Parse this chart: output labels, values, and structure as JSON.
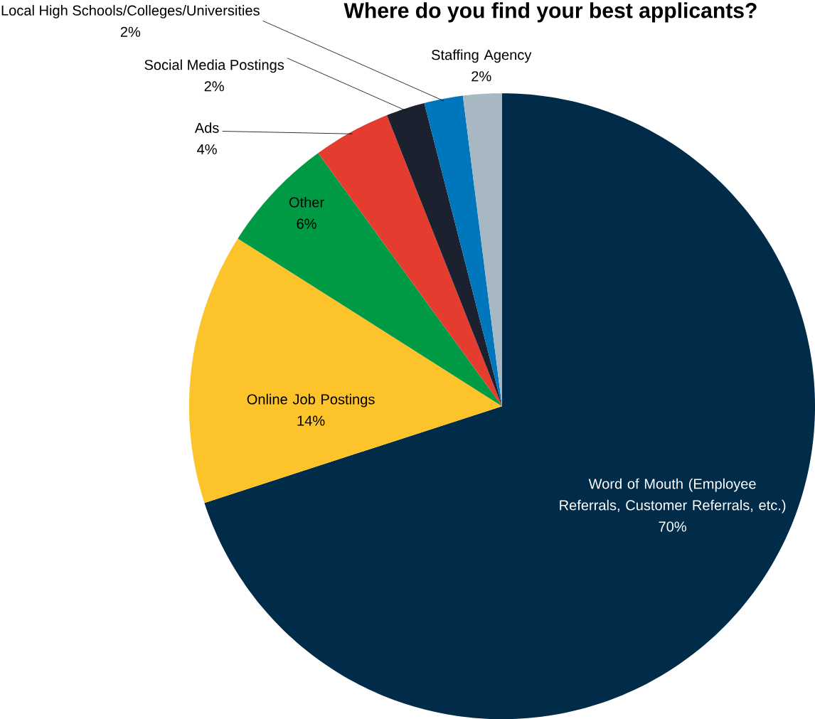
{
  "chart_data": {
    "type": "pie",
    "title": "Where do you find your best applicants?",
    "categories": [
      "Word of Mouth (Employee Referrals, Customer Referrals, etc.)",
      "Online Job Postings",
      "Other",
      "Ads",
      "Social Media Postings",
      "Local High Schools/Colleges/Universities",
      "Staffing Agency"
    ],
    "values": [
      70,
      14,
      6,
      4,
      2,
      2,
      2
    ],
    "value_labels": [
      "70%",
      "14%",
      "6%",
      "4%",
      "2%",
      "2%",
      "2%"
    ],
    "colors": [
      "#002b49",
      "#fcc32b",
      "#009a44",
      "#e43d30",
      "#1b212e",
      "#0077bc",
      "#a7b8c2"
    ]
  }
}
